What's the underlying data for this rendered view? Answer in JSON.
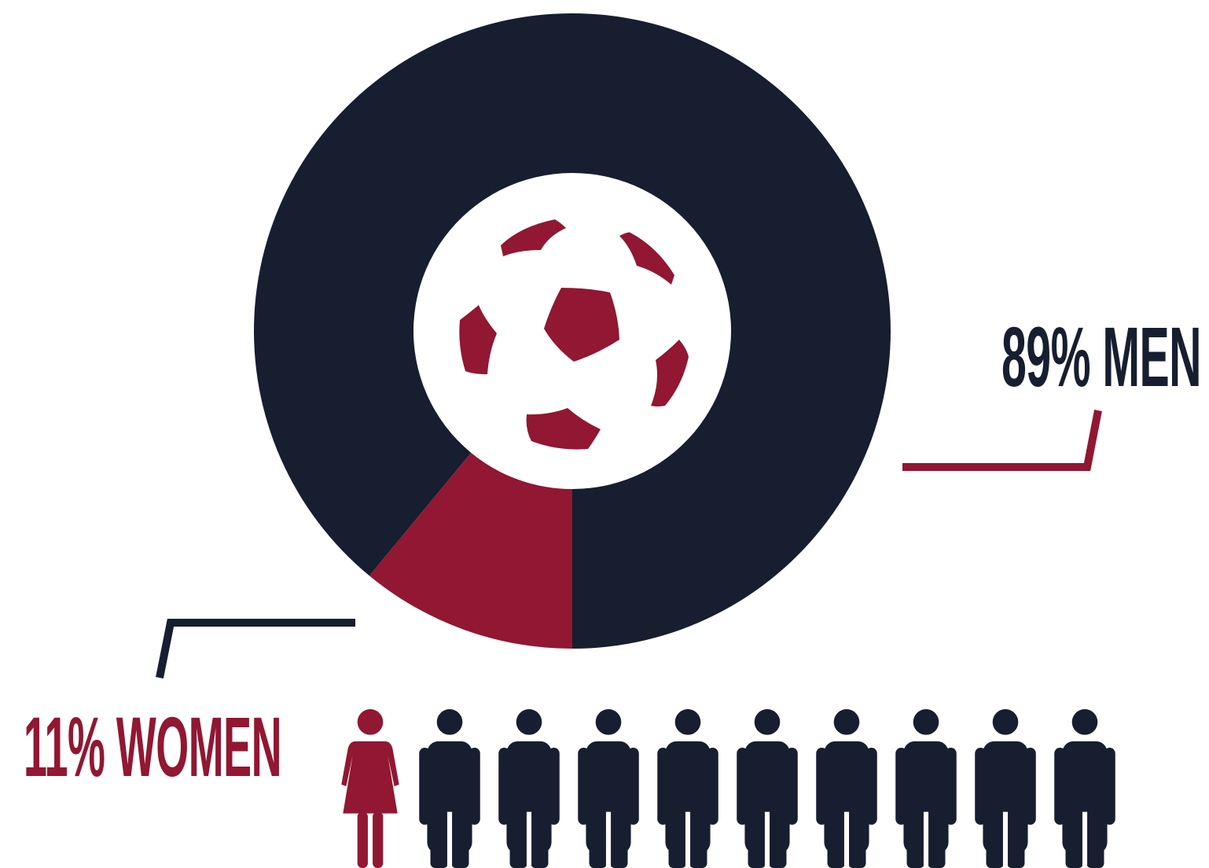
{
  "chart_data": {
    "type": "pie",
    "style": "donut",
    "slices": [
      {
        "label": "MEN",
        "value": 89,
        "display": "89% MEN",
        "color": "#161e30"
      },
      {
        "label": "WOMEN",
        "value": 11,
        "display": "11% WOMEN",
        "color": "#911732"
      }
    ],
    "center_icon": "soccer-ball-icon",
    "pictogram": {
      "total": 10,
      "woman_icon": "woman-icon",
      "man_icon": "man-icon",
      "women": 1,
      "men": 9
    }
  },
  "colors": {
    "dark": "#161e30",
    "accent": "#911732",
    "background": "#ffffff"
  }
}
